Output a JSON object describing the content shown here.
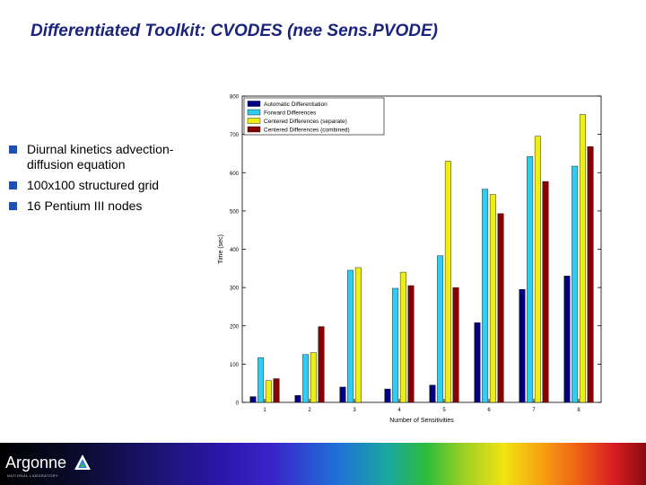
{
  "slide": {
    "title": "Differentiated Toolkit: CVODES (nee Sens.PVODE)"
  },
  "bullets": [
    "Diurnal kinetics advection-diffusion equation",
    "100x100 structured grid",
    "16 Pentium III nodes"
  ],
  "footer": {
    "logo_text": "Argonne",
    "logo_subtext": "NATIONAL LABORATORY"
  },
  "colors": {
    "title": "#1a237e",
    "bullet_marker": "#1f4fb2"
  },
  "chart_data": {
    "type": "bar",
    "title": "",
    "xlabel": "Number of Sensitivities",
    "ylabel": "Time (sec)",
    "ylim": [
      0,
      800
    ],
    "yticks": [
      0,
      100,
      200,
      300,
      400,
      500,
      600,
      700,
      800
    ],
    "categories": [
      "1",
      "2",
      "3",
      "4",
      "5",
      "6",
      "7",
      "8"
    ],
    "legend_position": "top-left",
    "grid": false,
    "series": [
      {
        "name": "Automatic Differentiation",
        "color": "#000080",
        "values": [
          15,
          18,
          40,
          35,
          45,
          208,
          295,
          330
        ]
      },
      {
        "name": "Forward Differences",
        "color": "#33ccee",
        "values": [
          117,
          125,
          345,
          298,
          383,
          557,
          642,
          617
        ]
      },
      {
        "name": "Centered Differences (separate)",
        "color": "#eeee11",
        "values": [
          57,
          130,
          352,
          340,
          630,
          543,
          695,
          752
        ]
      },
      {
        "name": "Centered Differences (combined)",
        "color": "#880000",
        "values": [
          62,
          198,
          0,
          305,
          300,
          493,
          577,
          668
        ]
      }
    ]
  }
}
